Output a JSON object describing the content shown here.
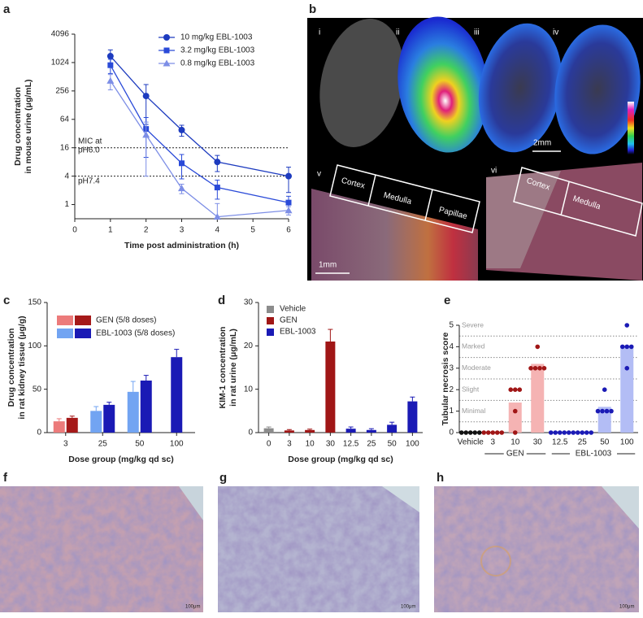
{
  "chart_data": [
    {
      "panel": "a",
      "type": "line",
      "x": [
        1,
        2,
        3,
        4,
        6
      ],
      "xlim": [
        0,
        6
      ],
      "xticks": [
        0,
        1,
        2,
        3,
        4,
        5,
        6
      ],
      "ylim": [
        0.5,
        4096
      ],
      "yticks": [
        1,
        4,
        16,
        64,
        256,
        1024,
        4096
      ],
      "yscale": "log",
      "log_base": 2,
      "xlabel": "Time post administration (h)",
      "ylabel": [
        "Drug concentration",
        "in mouse urine (μg/mL)"
      ],
      "legend": "upper right",
      "reference_lines": [
        {
          "value": 16,
          "label": [
            "MIC at",
            "pH6.0"
          ]
        },
        {
          "value": 4,
          "label": [
            "pH7.4"
          ]
        }
      ],
      "series": [
        {
          "name": "10 mg/kg EBL-1003",
          "color": "#1d3bbf",
          "marker": "circle",
          "values": [
            1400,
            200,
            38,
            8,
            4
          ],
          "errors": [
            500,
            150,
            10,
            3,
            2.2
          ]
        },
        {
          "name": "3.2 mg/kg EBL-1003",
          "color": "#2a4ad8",
          "marker": "square",
          "values": [
            900,
            40,
            7.5,
            2.3,
            1.1
          ],
          "errors": [
            300,
            30,
            4,
            1,
            0.4
          ]
        },
        {
          "name": "0.8 mg/kg EBL-1003",
          "color": "#7d8ee6",
          "marker": "triangle",
          "values": [
            420,
            30,
            2.2,
            0.55,
            0.75
          ],
          "errors": [
            150,
            26,
            0.5,
            0.5,
            0.15
          ]
        }
      ]
    },
    {
      "panel": "c",
      "type": "grouped_bar",
      "categories": [
        "3",
        "25",
        "50",
        "100"
      ],
      "ylim": [
        0,
        150
      ],
      "yticks": [
        0,
        50,
        100,
        150
      ],
      "xlabel": "Dose group (mg/kg qd sc)",
      "ylabel": [
        "Drug concentration",
        "in rat kidney tissue (μg/g)"
      ],
      "legend": "upper left",
      "series": [
        {
          "name": "GEN (5/8 doses)",
          "colors": [
            "#ec7b7b",
            "#a51919"
          ],
          "values": [
            [
              13,
              17
            ],
            [
              null,
              null
            ],
            [
              null,
              null
            ],
            [
              null,
              null
            ]
          ],
          "errors": [
            [
              3,
              2
            ],
            [
              null,
              null
            ],
            [
              null,
              null
            ],
            [
              null,
              null
            ]
          ]
        },
        {
          "name": "EBL-1003 (5/8 doses)",
          "colors": [
            "#72a4f2",
            "#1a1ab5"
          ],
          "values": [
            [
              null,
              null
            ],
            [
              25,
              32
            ],
            [
              47,
              60
            ],
            [
              null,
              87
            ]
          ],
          "errors": [
            [
              null,
              null
            ],
            [
              5,
              3
            ],
            [
              12,
              6
            ],
            [
              null,
              9
            ]
          ]
        }
      ]
    },
    {
      "panel": "d",
      "type": "bar",
      "categories": [
        "0",
        "3",
        "10",
        "30",
        "12.5",
        "25",
        "50",
        "100"
      ],
      "ylim": [
        0,
        30
      ],
      "yticks": [
        0,
        10,
        20,
        30
      ],
      "xlabel": "Dose group (mg/kg qd sc)",
      "ylabel": [
        "KIM-1 concentration",
        "in rat urine (μg/mL)"
      ],
      "legend": "upper left",
      "series": [
        {
          "name": "Vehicle",
          "color": "#8c8c8c",
          "values": [
            1.0,
            null,
            null,
            null,
            null,
            null,
            null,
            null
          ],
          "errors": [
            0.3,
            null,
            null,
            null,
            null,
            null,
            null,
            null
          ]
        },
        {
          "name": "GEN",
          "color": "#a01616",
          "values": [
            null,
            0.5,
            0.6,
            21,
            null,
            null,
            null,
            null
          ],
          "errors": [
            null,
            0.2,
            0.2,
            2.8,
            null,
            null,
            null,
            null
          ]
        },
        {
          "name": "EBL-1003",
          "color": "#1a1ab5",
          "values": [
            null,
            null,
            null,
            null,
            0.9,
            0.6,
            1.8,
            7.2
          ],
          "errors": [
            null,
            null,
            null,
            null,
            0.4,
            0.3,
            0.6,
            1.0
          ]
        }
      ]
    },
    {
      "panel": "e",
      "type": "dot",
      "ylim": [
        0,
        5
      ],
      "yticks": [
        0,
        1,
        2,
        3,
        4,
        5
      ],
      "ylabel": "Tubular necrosis score",
      "severity": [
        {
          "value": 1,
          "label": "Minimal"
        },
        {
          "value": 2,
          "label": "Slight"
        },
        {
          "value": 3,
          "label": "Moderate"
        },
        {
          "value": 4,
          "label": "Marked"
        },
        {
          "value": 5,
          "label": "Severe"
        }
      ],
      "groups": [
        {
          "color": "#111111",
          "bar_color": "#9a9a9a",
          "categories": [
            "Vehicle"
          ],
          "points": [
            [
              0,
              0,
              0,
              0,
              0
            ]
          ],
          "bars": [
            0
          ]
        },
        {
          "label": "GEN",
          "color": "#a01616",
          "bar_color": "#f5b3b3",
          "categories": [
            "3",
            "10",
            "30"
          ],
          "points": [
            [
              0,
              0,
              0,
              0,
              0
            ],
            [
              2,
              2,
              2,
              1,
              0
            ],
            [
              4,
              3,
              3,
              3,
              3
            ]
          ],
          "bars": [
            0,
            1.4,
            3.2
          ]
        },
        {
          "label": "EBL-1003",
          "color": "#1a1ab5",
          "bar_color": "#b3bdf5",
          "categories": [
            "12.5",
            "25",
            "50",
            "100"
          ],
          "points": [
            [
              0,
              0,
              0,
              0,
              0
            ],
            [
              0,
              0,
              0,
              0,
              0
            ],
            [
              2,
              1,
              1,
              1,
              1
            ],
            [
              5,
              4,
              4,
              4,
              3
            ]
          ],
          "bars": [
            0,
            0,
            1.2,
            4.0
          ]
        }
      ]
    }
  ],
  "kidney_imaging": {
    "panel": "b",
    "sections": [
      "i",
      "ii",
      "iii",
      "iv"
    ],
    "scale_top": "2mm",
    "histology": [
      {
        "label": "v",
        "regions": [
          "Cortex",
          "Medulla",
          "Papillae"
        ]
      },
      {
        "label": "vi",
        "regions": [
          "Cortex",
          "Medulla"
        ]
      }
    ],
    "scale_bottom": "1mm"
  },
  "histology": [
    {
      "panel": "f",
      "scale": "100μm"
    },
    {
      "panel": "g",
      "scale": "100μm"
    },
    {
      "panel": "h",
      "scale": "100μm"
    }
  ]
}
